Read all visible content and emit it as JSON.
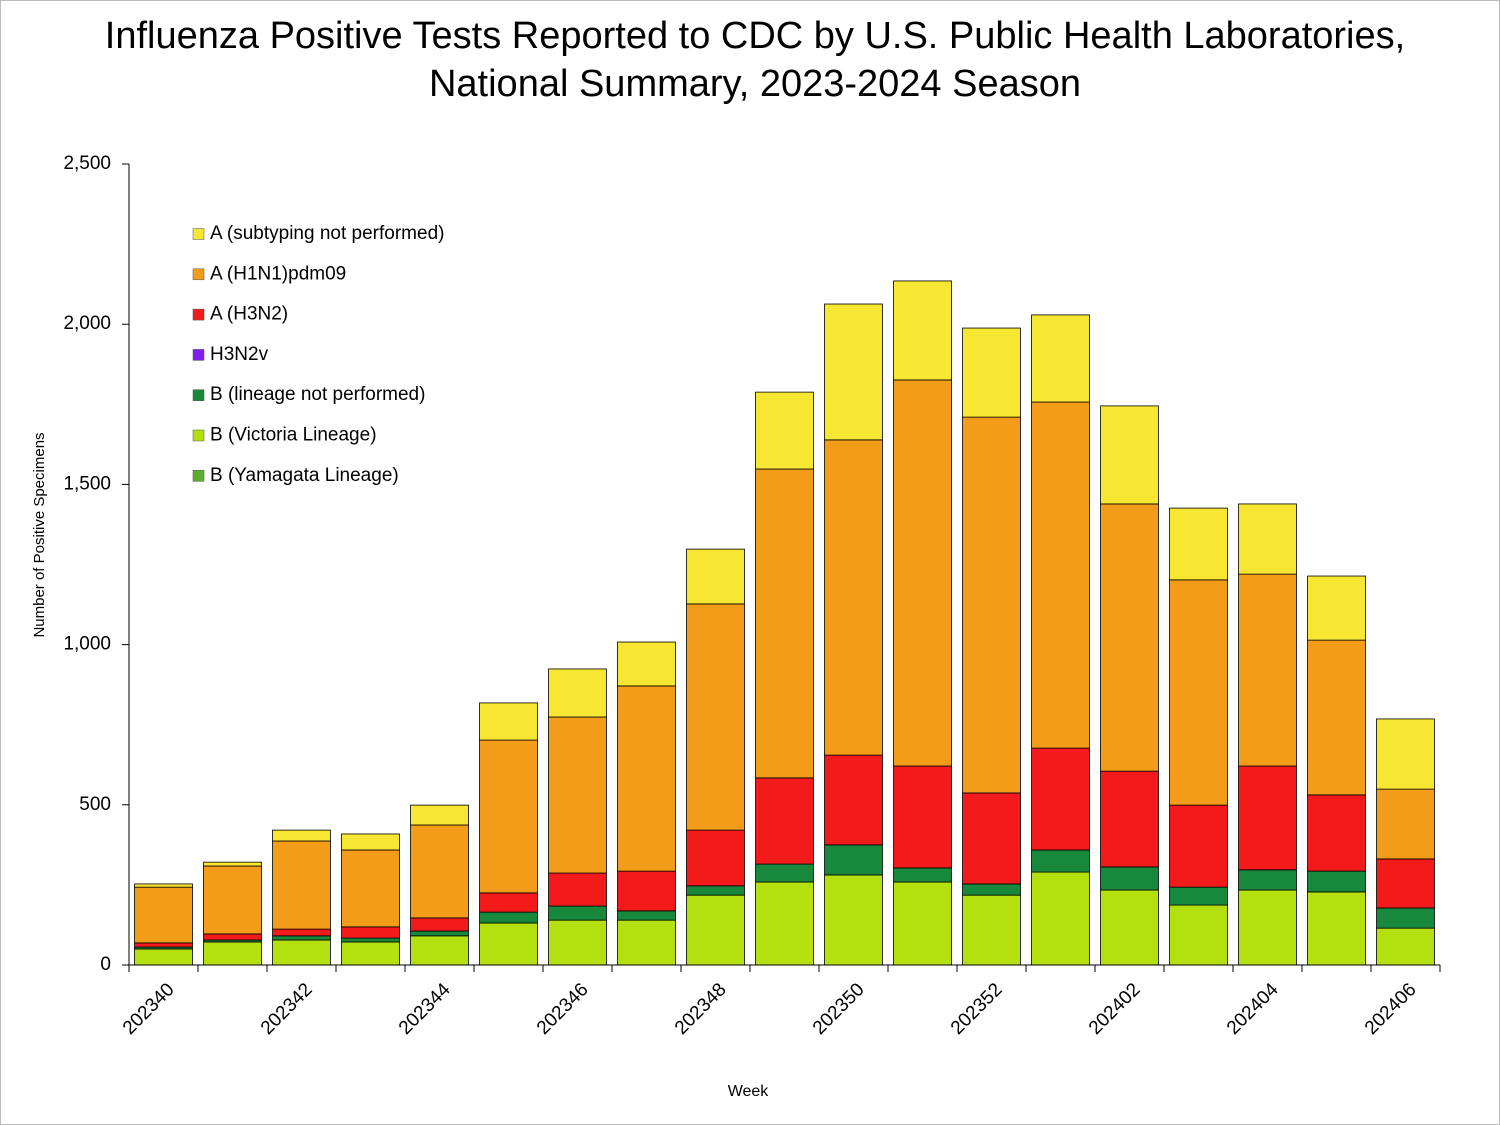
{
  "chart_data": {
    "type": "stacked-bar",
    "title": [
      "Influenza Positive Tests Reported to CDC by U.S. Public Health Laboratories,",
      "National Summary, 2023-2024 Season"
    ],
    "x_label": "Week",
    "y_label": "Number of Positive Specimens",
    "categories": [
      "202340",
      null,
      "202342",
      null,
      "202344",
      null,
      "202346",
      null,
      "202348",
      null,
      "202350",
      null,
      "202352",
      null,
      "202402",
      null,
      "202404",
      null,
      "202406"
    ],
    "ylim": [
      0,
      2500
    ],
    "yticks": [
      0,
      500,
      {
        "value": 1000,
        "label": "1,000"
      },
      {
        "value": 1500,
        "label": "1,500"
      },
      {
        "value": 2000,
        "label": "2,000"
      },
      {
        "value": 2500,
        "label": "2,500"
      }
    ],
    "series": [
      {
        "name": "A (subtyping not performed)",
        "color": "#f7e733",
        "values": [
          10,
          12,
          34,
          50,
          62,
          116,
          150,
          137,
          171,
          240,
          424,
          309,
          278,
          272,
          306,
          224,
          219,
          200,
          219
        ]
      },
      {
        "name": "A (H1N1)pdm09",
        "color": "#f39c19",
        "values": [
          174,
          212,
          275,
          240,
          290,
          477,
          487,
          578,
          706,
          964,
          984,
          1205,
          1173,
          1080,
          834,
          703,
          599,
          483,
          218
        ]
      },
      {
        "name": "A (H3N2)",
        "color": "#f21a1a",
        "values": [
          13,
          19,
          21,
          35,
          41,
          60,
          103,
          124,
          174,
          269,
          280,
          318,
          284,
          318,
          299,
          256,
          324,
          238,
          153
        ]
      },
      {
        "name": "H3N2v",
        "color": "#8020f0",
        "values": [
          0,
          0,
          0,
          0,
          0,
          0,
          0,
          0,
          0,
          0,
          0,
          0,
          0,
          0,
          0,
          0,
          0,
          0,
          0
        ]
      },
      {
        "name": "B (lineage not performed)",
        "color": "#17883c",
        "values": [
          6,
          6,
          13,
          12,
          15,
          34,
          44,
          29,
          29,
          56,
          94,
          44,
          35,
          69,
          72,
          56,
          63,
          65,
          63
        ]
      },
      {
        "name": "B (Victoria Lineage)",
        "color": "#b4e010",
        "values": [
          50,
          72,
          78,
          72,
          91,
          131,
          140,
          140,
          218,
          259,
          281,
          259,
          218,
          290,
          234,
          187,
          234,
          228,
          115
        ]
      },
      {
        "name": "B (Yamagata Lineage)",
        "color": "#5fad2c",
        "values": [
          0,
          0,
          0,
          0,
          0,
          0,
          0,
          0,
          0,
          0,
          0,
          0,
          0,
          0,
          0,
          0,
          0,
          0,
          0
        ]
      }
    ]
  }
}
